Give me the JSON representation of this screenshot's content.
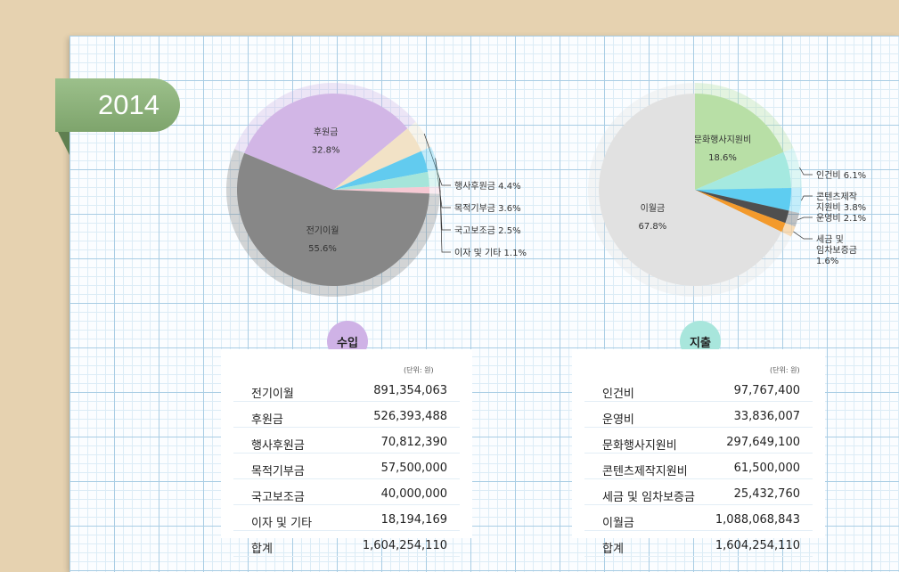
{
  "year": "2014",
  "colors": {
    "background": "#e6d2b0",
    "year_tab": "#8db27b",
    "income_badge": "#cfb2e6",
    "expense_badge": "#a8e6dc"
  },
  "income": {
    "badge": "수입",
    "unit": "(단위: 원)",
    "rows": [
      {
        "label": "전기이월",
        "value": "891,354,063"
      },
      {
        "label": "후원금",
        "value": "526,393,488"
      },
      {
        "label": "행사후원금",
        "value": "70,812,390"
      },
      {
        "label": "목적기부금",
        "value": "57,500,000"
      },
      {
        "label": "국고보조금",
        "value": "40,000,000"
      },
      {
        "label": "이자 및 기타",
        "value": "18,194,169"
      },
      {
        "label": "합계",
        "value": "1,604,254,110"
      }
    ]
  },
  "expense": {
    "badge": "지출",
    "unit": "(단위: 원)",
    "rows": [
      {
        "label": "인건비",
        "value": "97,767,400"
      },
      {
        "label": "운영비",
        "value": "33,836,007"
      },
      {
        "label": "문화행사지원비",
        "value": "297,649,100"
      },
      {
        "label": "콘텐츠제작지원비",
        "value": "61,500,000"
      },
      {
        "label": "세금 및 임차보증금",
        "value": "25,432,760"
      },
      {
        "label": "이월금",
        "value": "1,088,068,843"
      },
      {
        "label": "합계",
        "value": "1,604,254,110"
      }
    ]
  },
  "chart_data": [
    {
      "type": "pie",
      "start_angle_deg": -67.6,
      "slices": [
        {
          "name": "후원금",
          "value": 32.8,
          "value_label": "32.8%",
          "color": "#d2b6e6",
          "outside": false
        },
        {
          "name": "행사후원금",
          "value": 4.4,
          "value_label": "4.4%",
          "color": "#f2e2c6",
          "outside": true
        },
        {
          "name": "목적기부금",
          "value": 3.6,
          "value_label": "3.6%",
          "color": "#62cbef",
          "outside": true
        },
        {
          "name": "국고보조금",
          "value": 2.5,
          "value_label": "2.5%",
          "color": "#a5e5da",
          "outside": true
        },
        {
          "name": "이자 및 기타",
          "value": 1.1,
          "value_label": "1.1%",
          "color": "#f6c9d3",
          "outside": true
        },
        {
          "name": "전기이월",
          "value": 55.6,
          "value_label": "55.6%",
          "color": "#878787",
          "outside": false
        }
      ]
    },
    {
      "type": "pie",
      "start_angle_deg": 0,
      "slices": [
        {
          "name": "문화행사지원비",
          "value": 18.6,
          "value_label": "18.6%",
          "color": "#b8dfa6",
          "outside": false
        },
        {
          "name": "인건비",
          "value": 6.1,
          "value_label": "6.1%",
          "color": "#a5e9e0",
          "outside": true
        },
        {
          "name": "콘텐츠제작 지원비",
          "value": 3.8,
          "value_label": "3.8%",
          "color": "#5ecdf1",
          "outside": true
        },
        {
          "name": "운영비",
          "value": 2.1,
          "value_label": "2.1%",
          "color": "#4f4f4f",
          "outside": true
        },
        {
          "name": "세금 및 임차보증금",
          "value": 1.6,
          "value_label": "1.6%",
          "color": "#f39a2c",
          "outside": true
        },
        {
          "name": "이월금",
          "value": 67.8,
          "value_label": "67.8%",
          "color": "#e1e1e1",
          "outside": false
        }
      ]
    }
  ]
}
